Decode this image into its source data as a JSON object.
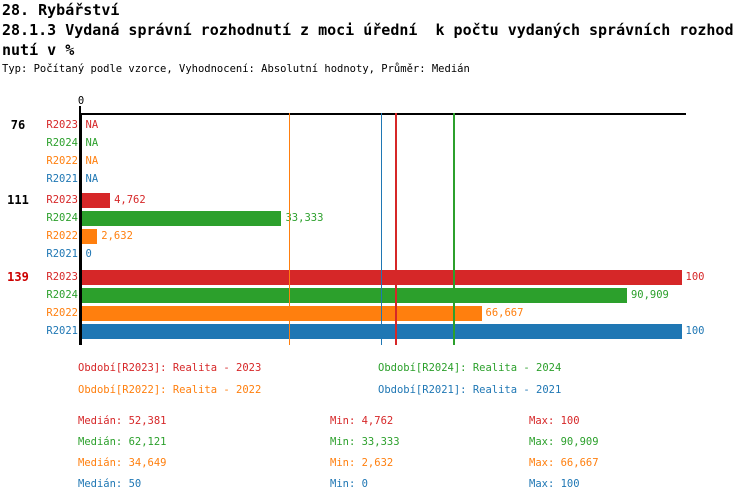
{
  "header": {
    "line1": "28. Rybářství",
    "line2": "28.1.3 Vydaná správní rozhodnutí z moci úřední  k počtu vydaných správních rozhod",
    "line3": "nutí v %",
    "meta": "Typ: Počítaný podle vzorce, Vyhodnocení: Absolutní hodnoty, Průměr: Medián"
  },
  "stats_labels": {
    "median": "Medián",
    "min": "Min",
    "max": "Max"
  },
  "chart_data": {
    "type": "bar",
    "orientation": "horizontal",
    "title": "28.1.3 Vydaná správní rozhodnutí z moci úřední k počtu vydaných správních rozhodnutí v %",
    "unit": "%",
    "x_axis": {
      "min": 0,
      "max": 100,
      "zero_label": "0",
      "grid": false
    },
    "legend_position": "bottom",
    "series": [
      {
        "id": "R2023",
        "color": "#d62728",
        "legend_label": "Období[R2023]: Realita - 2023",
        "median": 52.381,
        "min": 4.762,
        "max": 100,
        "median_display": "52,381",
        "min_display": "4,762",
        "max_display": "100"
      },
      {
        "id": "R2024",
        "color": "#2ca02c",
        "legend_label": "Období[R2024]: Realita - 2024",
        "median": 62.121,
        "min": 33.333,
        "max": 90.909,
        "median_display": "62,121",
        "min_display": "33,333",
        "max_display": "90,909"
      },
      {
        "id": "R2022",
        "color": "#ff7f0e",
        "legend_label": "Období[R2022]: Realita - 2022",
        "median": 34.649,
        "min": 2.632,
        "max": 66.667,
        "median_display": "34,649",
        "min_display": "2,632",
        "max_display": "66,667"
      },
      {
        "id": "R2021",
        "color": "#1f77b4",
        "legend_label": "Období[R2021]: Realita - 2021",
        "median": 50,
        "min": 0,
        "max": 100,
        "median_display": "50",
        "min_display": "0",
        "max_display": "100"
      }
    ],
    "groups": [
      {
        "label": "76",
        "label_color": "#000000",
        "values": [
          {
            "series": "R2023",
            "value": null,
            "display": "NA"
          },
          {
            "series": "R2024",
            "value": null,
            "display": "NA"
          },
          {
            "series": "R2022",
            "value": null,
            "display": "NA"
          },
          {
            "series": "R2021",
            "value": null,
            "display": "NA"
          }
        ]
      },
      {
        "label": "111",
        "label_color": "#000000",
        "values": [
          {
            "series": "R2023",
            "value": 4.762,
            "display": "4,762"
          },
          {
            "series": "R2024",
            "value": 33.333,
            "display": "33,333"
          },
          {
            "series": "R2022",
            "value": 2.632,
            "display": "2,632"
          },
          {
            "series": "R2021",
            "value": 0,
            "display": "0"
          }
        ]
      },
      {
        "label": "139",
        "label_color": "#cc0000",
        "values": [
          {
            "series": "R2023",
            "value": 100,
            "display": "100"
          },
          {
            "series": "R2024",
            "value": 90.909,
            "display": "90,909"
          },
          {
            "series": "R2022",
            "value": 66.667,
            "display": "66,667"
          },
          {
            "series": "R2021",
            "value": 100,
            "display": "100"
          }
        ]
      }
    ]
  }
}
